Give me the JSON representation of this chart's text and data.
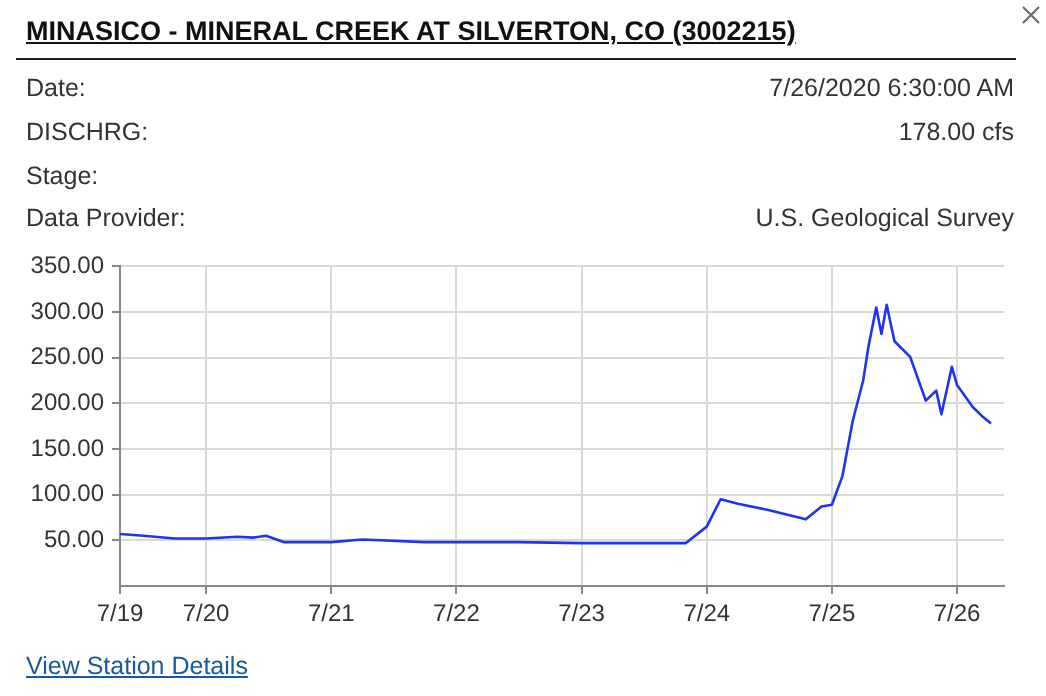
{
  "chart_data": {
    "type": "line",
    "title": "MINASICO - MINERAL CREEK AT SILVERTON, CO (3002215)",
    "subtitle": "Stage:",
    "annotations": [
      "Date:",
      "7/26/2020 6:30:00 AM",
      "DISCHRG:",
      "178.00 cfs",
      "Data Provider:",
      "U.S. Geological Survey",
      "View Station Details"
    ],
    "x": [
      "2020-07-19T07:30",
      "2020-07-19T12:00",
      "2020-07-19T18:00",
      "2020-07-20T00:00",
      "2020-07-20T06:00",
      "2020-07-20T09:00",
      "2020-07-20T11:30",
      "2020-07-20T15:00",
      "2020-07-21T00:00",
      "2020-07-21T06:00",
      "2020-07-21T18:00",
      "2020-07-22T00:00",
      "2020-07-22T12:00",
      "2020-07-23T00:00",
      "2020-07-23T12:00",
      "2020-07-23T20:00",
      "2020-07-24T00:00",
      "2020-07-24T02:40",
      "2020-07-24T06:00",
      "2020-07-24T12:00",
      "2020-07-24T19:00",
      "2020-07-24T22:00",
      "2020-07-25T00:00",
      "2020-07-25T02:00",
      "2020-07-25T04:00",
      "2020-07-25T06:00",
      "2020-07-25T07:00",
      "2020-07-25T08:30",
      "2020-07-25T09:30",
      "2020-07-25T10:30",
      "2020-07-25T12:00",
      "2020-07-25T15:00",
      "2020-07-25T18:00",
      "2020-07-25T20:00",
      "2020-07-25T21:00",
      "2020-07-25T23:00",
      "2020-07-26T00:00",
      "2020-07-26T03:00",
      "2020-07-26T05:00",
      "2020-07-26T06:30"
    ],
    "series": [
      {
        "color": "#2233ee",
        "values": [
          57,
          55,
          52,
          52,
          54,
          53,
          55,
          48,
          48,
          51,
          48,
          48,
          48,
          47,
          47,
          47,
          65,
          95,
          90,
          83,
          73,
          87,
          89,
          120,
          181,
          225,
          262,
          305,
          276,
          308,
          268,
          251,
          203,
          214,
          188,
          240,
          220,
          196,
          185,
          178
        ]
      }
    ],
    "xlim": [
      "2020-07-19T07:30",
      "2020-07-26T09:00"
    ],
    "xticks": [
      {
        "value": "2020-07-19T07:30",
        "label": "7/19"
      },
      {
        "value": "2020-07-20T00:00",
        "label": "7/20"
      },
      {
        "value": "2020-07-21T00:00",
        "label": "7/21"
      },
      {
        "value": "2020-07-22T00:00",
        "label": "7/22"
      },
      {
        "value": "2020-07-23T00:00",
        "label": "7/23"
      },
      {
        "value": "2020-07-24T00:00",
        "label": "7/24"
      },
      {
        "value": "2020-07-25T00:00",
        "label": "7/25"
      },
      {
        "value": "2020-07-26T00:00",
        "label": "7/26"
      }
    ],
    "ylim": [
      0,
      350
    ],
    "yticks": [
      {
        "value": 50,
        "label": "50.00"
      },
      {
        "value": 100,
        "label": "100.00"
      },
      {
        "value": 150,
        "label": "150.00"
      },
      {
        "value": 200,
        "label": "200.00"
      },
      {
        "value": 250,
        "label": "250.00"
      },
      {
        "value": 300,
        "label": "300.00"
      },
      {
        "value": 350,
        "label": "350.00"
      }
    ],
    "grid": true,
    "legend": false,
    "marker": "none",
    "line_style": "solid"
  }
}
